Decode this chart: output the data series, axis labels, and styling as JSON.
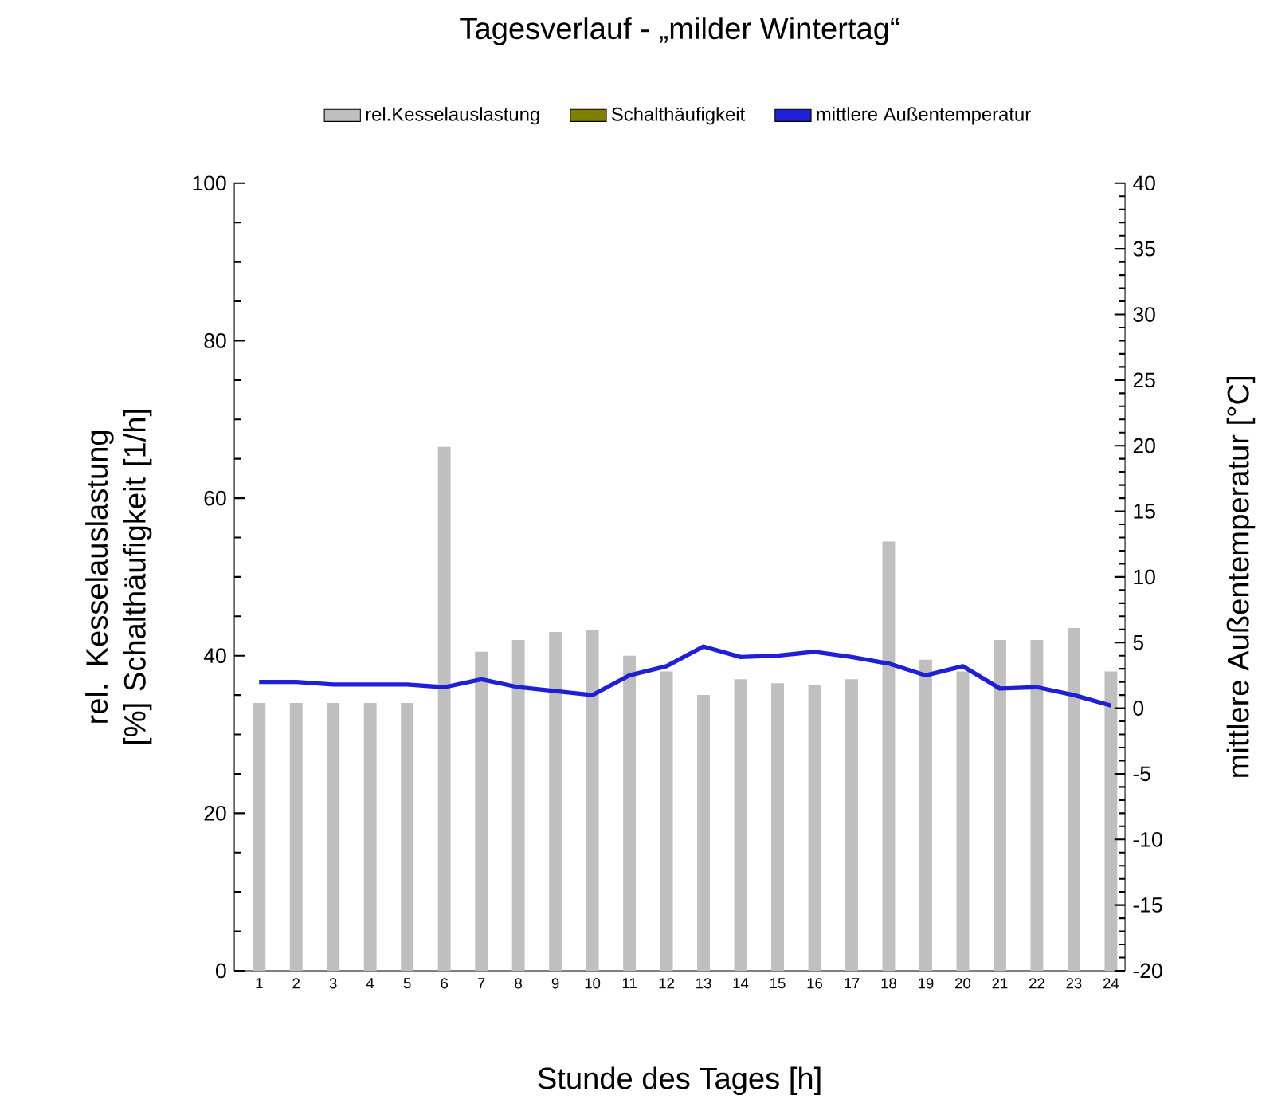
{
  "chart_data": {
    "type": "bar",
    "title": "Tagesverlauf - „milder Wintertag“",
    "xlabel": "Stunde des Tages [h]",
    "ylabel": "rel. Kesselauslastung [%] Schalthäufigkeit [1/h]",
    "y2label": "mittlere Außentemperatur [°C]",
    "categories": [
      "1",
      "2",
      "3",
      "4",
      "5",
      "6",
      "7",
      "8",
      "9",
      "10",
      "11",
      "12",
      "13",
      "14",
      "15",
      "16",
      "17",
      "18",
      "19",
      "20",
      "21",
      "22",
      "23",
      "24"
    ],
    "series": [
      {
        "name": "rel.Kesselauslastung",
        "color": "#bfbfbf",
        "values": [
          34,
          34,
          34,
          34,
          34,
          66.5,
          40.5,
          42,
          43,
          43.3,
          40,
          38,
          35,
          37,
          36.5,
          36.3,
          37,
          54.5,
          39.5,
          38,
          42,
          42,
          43.5,
          38
        ]
      },
      {
        "name": "Schalthäufigkeit",
        "color": "#7f7f00",
        "values": [
          null,
          null,
          null,
          null,
          null,
          null,
          null,
          null,
          null,
          null,
          null,
          null,
          null,
          null,
          null,
          null,
          null,
          null,
          null,
          null,
          null,
          null,
          null,
          null
        ]
      },
      {
        "name": "mittlere Außentemperatur",
        "type": "line",
        "axis": "y2",
        "color": "#1f1fd6",
        "values": [
          2.0,
          2.0,
          1.8,
          1.8,
          1.8,
          1.6,
          2.2,
          1.6,
          1.3,
          1.0,
          2.5,
          3.2,
          4.7,
          3.9,
          4.0,
          4.3,
          3.9,
          3.4,
          2.5,
          3.2,
          1.5,
          1.6,
          1.0,
          0.2
        ]
      }
    ],
    "ylim": [
      0,
      100
    ],
    "yticks": [
      0,
      20,
      40,
      60,
      80,
      100
    ],
    "y2lim": [
      -20,
      40
    ],
    "y2ticks": [
      -20,
      -15,
      -10,
      -5,
      0,
      5,
      10,
      15,
      20,
      25,
      30,
      35,
      40
    ],
    "grid": false,
    "legend": "top"
  }
}
